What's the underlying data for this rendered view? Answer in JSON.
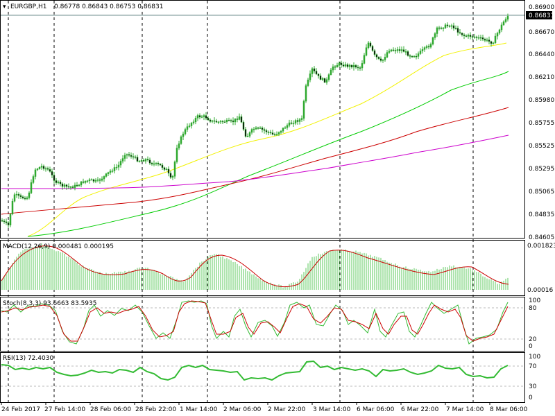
{
  "window": {
    "main_title": "EURGBP,H1",
    "main_ohlc": "0.86778 0.86843 0.86753 0.86831",
    "macd_title": "MACD(12,26,9) 0.000481 0.000195",
    "stoch_title": "Stoch(8,3,3) 93.6663 83.5935",
    "rsi_title": "RSI(13) 72.4030"
  },
  "price_axis": {
    "ticks": [
      "0.86900",
      "0.86670",
      "0.86440",
      "0.86210",
      "0.85980",
      "0.85755",
      "0.85525",
      "0.85295",
      "0.85065",
      "0.84835",
      "0.84605"
    ],
    "current_price": "0.86831"
  },
  "macd_axis": {
    "top": "0.001823",
    "bottom": "0.00016"
  },
  "stoch_axis": {
    "ticks": [
      "100",
      "80",
      "20",
      "0"
    ]
  },
  "rsi_axis": {
    "ticks": [
      "100",
      "70",
      "30",
      "0"
    ]
  },
  "time_axis": {
    "labels": [
      "24 Feb 2017",
      "27 Feb 14:00",
      "28 Feb 06:00",
      "28 Feb 22:00",
      "1 Mar 14:00",
      "2 Mar 06:00",
      "2 Mar 22:00",
      "3 Mar 14:00",
      "6 Mar 06:00",
      "6 Mar 22:00",
      "7 Mar 14:00",
      "8 Mar 06:00"
    ]
  },
  "colors": {
    "up_candle": "#2fa82f",
    "ma_fast": "#f2f200",
    "ma_mid": "#00cc00",
    "ma_slow": "#cc0000",
    "ma_slowest": "#cc00cc",
    "macd_hist": "#5cc85c",
    "macd_signal": "#cc0000",
    "stoch_main": "#33bb33",
    "stoch_signal": "#cc0000",
    "rsi_line": "#33bb33"
  }
}
